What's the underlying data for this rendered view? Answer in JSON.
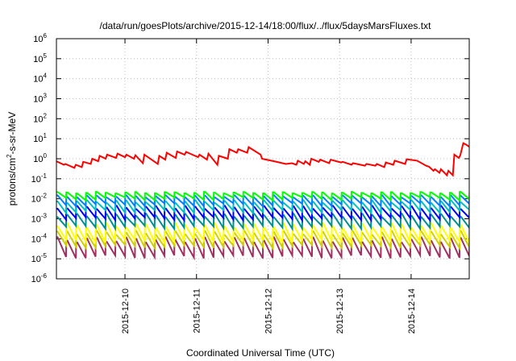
{
  "chart_data": {
    "type": "line",
    "title": "/data/run/goesPlots/archive/2015-12-14/18:00/flux/../flux/5daysMarsFluxes.txt",
    "xlabel": "Coordinated Universal Time (UTC)",
    "ylabel": {
      "pre": "protons/cm",
      "sup": "2",
      "post": "-s-sr-MeV"
    },
    "x_scale": "time",
    "y_scale": "log",
    "xlim": [
      "2015-12-09T01:00",
      "2015-12-14T19:30"
    ],
    "ylim": [
      1e-06,
      1000000.0
    ],
    "x_ticks": [
      "2015-12-10",
      "2015-12-11",
      "2015-12-12",
      "2015-12-13",
      "2015-12-14"
    ],
    "y_ticks": [
      {
        "base": "10",
        "exp": "-6",
        "value": 1e-06
      },
      {
        "base": "10",
        "exp": "-5",
        "value": 1e-05
      },
      {
        "base": "10",
        "exp": "-4",
        "value": 0.0001
      },
      {
        "base": "10",
        "exp": "-3",
        "value": 0.001
      },
      {
        "base": "10",
        "exp": "-2",
        "value": 0.01
      },
      {
        "base": "10",
        "exp": "-1",
        "value": 0.1
      },
      {
        "base": "10",
        "exp": "0",
        "value": 1
      },
      {
        "base": "10",
        "exp": "1",
        "value": 10
      },
      {
        "base": "10",
        "exp": "2",
        "value": 100
      },
      {
        "base": "10",
        "exp": "3",
        "value": 1000
      },
      {
        "base": "10",
        "exp": "4",
        "value": 10000
      },
      {
        "base": "10",
        "exp": "5",
        "value": 100000
      },
      {
        "base": "10",
        "exp": "6",
        "value": 1000000
      }
    ],
    "grid": true,
    "series": [
      {
        "color": "#ff0000",
        "x": [
          "2015-12-09T01:00",
          "2015-12-09T03:30",
          "2015-12-09T04:00",
          "2015-12-09T07:00",
          "2015-12-09T07:30",
          "2015-12-09T09:30",
          "2015-12-09T10:00",
          "2015-12-09T12:30",
          "2015-12-09T13:00",
          "2015-12-09T15:00",
          "2015-12-09T15:30",
          "2015-12-09T17:30",
          "2015-12-09T18:00",
          "2015-12-09T21:00",
          "2015-12-09T21:30",
          "2015-12-10T00:00",
          "2015-12-10T00:30",
          "2015-12-10T03:00",
          "2015-12-10T03:30",
          "2015-12-10T06:00",
          "2015-12-10T06:30",
          "2015-12-10T11:00",
          "2015-12-10T11:30",
          "2015-12-10T13:30",
          "2015-12-10T14:00",
          "2015-12-10T17:00",
          "2015-12-10T17:30",
          "2015-12-10T20:00",
          "2015-12-10T20:30",
          "2015-12-11T00:30",
          "2015-12-11T01:00",
          "2015-12-11T03:30",
          "2015-12-11T04:00",
          "2015-12-11T07:00",
          "2015-12-11T07:30",
          "2015-12-11T10:30",
          "2015-12-11T11:00",
          "2015-12-11T13:30",
          "2015-12-11T14:00",
          "2015-12-11T17:00",
          "2015-12-11T17:30",
          "2015-12-11T21:30",
          "2015-12-11T22:00",
          "2015-12-12T02:00",
          "2015-12-12T06:00",
          "2015-12-12T08:00",
          "2015-12-12T09:30",
          "2015-12-12T10:00",
          "2015-12-12T12:00",
          "2015-12-12T12:30",
          "2015-12-12T14:00",
          "2015-12-12T14:30",
          "2015-12-12T17:00",
          "2015-12-12T17:30",
          "2015-12-12T20:30",
          "2015-12-12T21:00",
          "2015-12-13T00:30",
          "2015-12-13T01:00",
          "2015-12-13T04:00",
          "2015-12-13T04:30",
          "2015-12-13T08:30",
          "2015-12-13T09:00",
          "2015-12-13T12:00",
          "2015-12-13T12:30",
          "2015-12-13T15:00",
          "2015-12-13T15:30",
          "2015-12-13T18:00",
          "2015-12-13T18:30",
          "2015-12-13T22:00",
          "2015-12-13T22:30",
          "2015-12-14T02:00",
          "2015-12-14T05:00",
          "2015-12-14T06:00",
          "2015-12-14T07:30",
          "2015-12-14T08:00",
          "2015-12-14T09:30",
          "2015-12-14T10:00",
          "2015-12-14T12:00",
          "2015-12-14T12:30",
          "2015-12-14T14:00",
          "2015-12-14T14:30",
          "2015-12-14T16:00",
          "2015-12-14T16:30",
          "2015-12-14T17:30",
          "2015-12-14T18:30",
          "2015-12-14T19:30"
        ],
        "values": [
          0.75,
          0.5,
          0.55,
          0.35,
          0.5,
          0.38,
          0.7,
          0.55,
          1.0,
          0.75,
          1.4,
          1.0,
          1.6,
          1.1,
          1.8,
          1.2,
          1.6,
          1.0,
          1.5,
          0.6,
          1.6,
          0.55,
          1.4,
          0.9,
          2.0,
          1.1,
          2.3,
          1.6,
          2.2,
          1.2,
          1.6,
          0.9,
          1.8,
          0.5,
          1.4,
          1.0,
          3.0,
          2.0,
          3.0,
          2.0,
          3.8,
          1.6,
          1.0,
          0.75,
          0.55,
          0.6,
          0.5,
          0.8,
          0.55,
          0.75,
          0.5,
          1.0,
          0.7,
          0.9,
          0.6,
          0.9,
          0.65,
          0.7,
          0.5,
          0.6,
          0.45,
          0.55,
          0.45,
          0.55,
          0.38,
          0.65,
          0.5,
          0.8,
          0.55,
          0.95,
          0.8,
          0.45,
          0.4,
          0.25,
          0.3,
          0.2,
          0.3,
          0.15,
          0.25,
          0.15,
          1.6,
          1.1,
          1.5,
          6.0,
          5.0,
          4.0
        ]
      },
      {
        "color": "#00ff00",
        "values": [
          0.012,
          0.022
        ],
        "description_base": 0.012,
        "description_peak": 0.022
      },
      {
        "color": "#0080ff",
        "values": [
          0.006,
          0.015
        ]
      },
      {
        "color": "#00c0c0",
        "values": [
          0.0028,
          0.0085
        ]
      },
      {
        "color": "#0000ff",
        "values": [
          0.0012,
          0.0045
        ]
      },
      {
        "color": "#009090",
        "values": [
          0.00045,
          0.0018
        ]
      },
      {
        "color": "#ffff00",
        "values": [
          9e-05,
          0.0006
        ]
      },
      {
        "color": "#d0d000",
        "values": [
          5e-05,
          0.00025
        ]
      },
      {
        "color": "#a03060",
        "values": [
          1.5e-05,
          0.00012
        ]
      }
    ]
  }
}
